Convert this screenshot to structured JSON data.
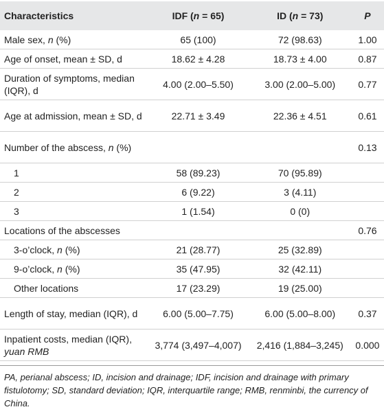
{
  "table": {
    "header": [
      "Characteristics",
      [
        {
          "text": "IDF ("
        },
        {
          "text": "n",
          "italic": true
        },
        {
          "text": " = 65)"
        }
      ],
      [
        {
          "text": "ID ("
        },
        {
          "text": "n",
          "italic": true
        },
        {
          "text": " = 73)"
        }
      ],
      [
        {
          "text": "P",
          "italic": true
        }
      ]
    ],
    "rows": [
      [
        [
          {
            "text": "Male sex, "
          },
          {
            "text": "n",
            "italic": true
          },
          {
            "text": " (%)"
          }
        ],
        "65 (100)",
        "72 (98.63)",
        "1.00"
      ],
      [
        "Age of onset, mean ± SD, d",
        "18.62 ± 4.28",
        "18.73 ± 4.00",
        "0.87"
      ],
      [
        "Duration of symptoms, median (IQR), d",
        "4.00 (2.00–5.50)",
        "3.00 (2.00–5.00)",
        "0.77"
      ],
      [
        "Age at admission, mean ± SD, d",
        "22.71 ± 3.49",
        "22.36 ± 4.51",
        "0.61"
      ],
      [
        [
          {
            "text": "Number of the abscess, "
          },
          {
            "text": "n",
            "italic": true
          },
          {
            "text": " (%)"
          }
        ],
        "",
        "",
        "0.13"
      ],
      [
        "1",
        "58 (89.23)",
        "70 (95.89)",
        ""
      ],
      [
        "2",
        "6 (9.22)",
        "3 (4.11)",
        ""
      ],
      [
        "3",
        "1 (1.54)",
        "0 (0)",
        ""
      ],
      [
        "Locations of the abscesses",
        "",
        "",
        "0.76"
      ],
      [
        [
          {
            "text": "3-o’clock, "
          },
          {
            "text": "n",
            "italic": true
          },
          {
            "text": " (%)"
          }
        ],
        "21 (28.77)",
        "25 (32.89)",
        ""
      ],
      [
        [
          {
            "text": "9-o’clock, "
          },
          {
            "text": "n",
            "italic": true
          },
          {
            "text": " (%)"
          }
        ],
        "35 (47.95)",
        "32 (42.11)",
        ""
      ],
      [
        "Other locations",
        "17 (23.29)",
        "19 (25.00)",
        ""
      ],
      [
        "Length of stay, median (IQR), d",
        "6.00 (5.00–7.75)",
        "6.00 (5.00–8.00)",
        "0.37"
      ],
      [
        [
          {
            "text": "Inpatient costs, median (IQR), "
          },
          {
            "text": "yuan RMB",
            "italic": true
          }
        ],
        "3,774 (3,497–4,007)",
        "2,416 (1,884–3,245)",
        "0.000"
      ]
    ],
    "indented_rows": [
      5,
      6,
      7,
      9,
      10,
      11
    ],
    "two_line_rows": [
      2,
      3,
      4,
      12,
      13
    ]
  },
  "footnote": "PA, perianal abscess; ID, incision and drainage; IDF, incision and drainage with primary fistulotomy; SD, standard deviation; IQR, interquartile range; RMB, renminbi, the currency of China."
}
